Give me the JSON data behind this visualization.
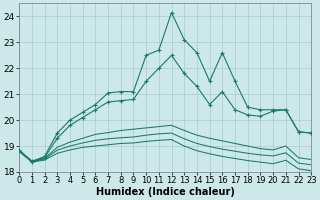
{
  "xlabel": "Humidex (Indice chaleur)",
  "bg_color": "#cce8e8",
  "grid_color": "#aacccc",
  "line_color": "#1a7a6a",
  "xmin": 0,
  "xmax": 23,
  "ymin": 18,
  "ymax": 24.5,
  "yticks": [
    18,
    19,
    20,
    21,
    22,
    23,
    24
  ],
  "xticks": [
    0,
    1,
    2,
    3,
    4,
    5,
    6,
    7,
    8,
    9,
    10,
    11,
    12,
    13,
    14,
    15,
    16,
    17,
    18,
    19,
    20,
    21,
    22,
    23
  ],
  "s1_x": [
    0,
    1,
    2,
    3,
    4,
    5,
    6,
    7,
    8,
    9,
    10,
    11,
    12,
    13,
    14,
    15,
    16,
    17,
    18,
    19,
    20,
    21,
    22,
    23
  ],
  "s1_y": [
    18.8,
    18.4,
    18.6,
    19.5,
    20.0,
    20.3,
    20.6,
    21.05,
    21.1,
    21.1,
    22.5,
    22.7,
    24.15,
    23.1,
    22.6,
    21.5,
    22.6,
    21.5,
    20.5,
    20.4,
    20.4,
    20.4,
    19.55,
    19.5
  ],
  "s2_x": [
    0,
    1,
    2,
    3,
    4,
    5,
    6,
    7,
    8,
    9,
    10,
    11,
    12,
    13,
    14,
    15,
    16,
    17,
    18,
    19,
    20,
    21,
    22,
    23
  ],
  "s2_y": [
    18.85,
    18.42,
    18.55,
    19.3,
    19.8,
    20.1,
    20.4,
    20.7,
    20.75,
    20.8,
    21.5,
    22.0,
    22.5,
    21.8,
    21.3,
    20.6,
    21.1,
    20.4,
    20.2,
    20.15,
    20.35,
    20.4,
    19.55,
    19.5
  ],
  "s3_x": [
    0,
    1,
    2,
    3,
    4,
    5,
    6,
    7,
    8,
    9,
    10,
    11,
    12,
    13,
    14,
    15,
    16,
    17,
    18,
    19,
    20,
    21,
    22,
    23
  ],
  "s3_y": [
    18.8,
    18.42,
    18.52,
    18.95,
    19.15,
    19.3,
    19.45,
    19.52,
    19.6,
    19.65,
    19.7,
    19.75,
    19.8,
    19.6,
    19.42,
    19.3,
    19.2,
    19.1,
    19.0,
    18.9,
    18.85,
    19.0,
    18.55,
    18.48
  ],
  "s4_x": [
    0,
    1,
    2,
    3,
    4,
    5,
    6,
    7,
    8,
    9,
    10,
    11,
    12,
    13,
    14,
    15,
    16,
    17,
    18,
    19,
    20,
    21,
    22,
    23
  ],
  "s4_y": [
    18.8,
    18.38,
    18.46,
    18.72,
    18.85,
    18.95,
    19.0,
    19.05,
    19.1,
    19.12,
    19.18,
    19.22,
    19.25,
    19.0,
    18.82,
    18.7,
    18.6,
    18.52,
    18.44,
    18.38,
    18.32,
    18.45,
    18.12,
    18.05
  ],
  "s5_x": [
    0,
    1,
    2,
    3,
    4,
    5,
    6,
    7,
    8,
    9,
    10,
    11,
    12,
    13,
    14,
    15,
    16,
    17,
    18,
    19,
    20,
    21,
    22,
    23
  ],
  "s5_y": [
    18.82,
    18.4,
    18.5,
    18.84,
    19.0,
    19.12,
    19.22,
    19.28,
    19.32,
    19.35,
    19.42,
    19.47,
    19.5,
    19.28,
    19.1,
    18.98,
    18.88,
    18.8,
    18.72,
    18.66,
    18.62,
    18.74,
    18.34,
    18.28
  ],
  "fontsize_label": 7,
  "fontsize_tick": 6
}
